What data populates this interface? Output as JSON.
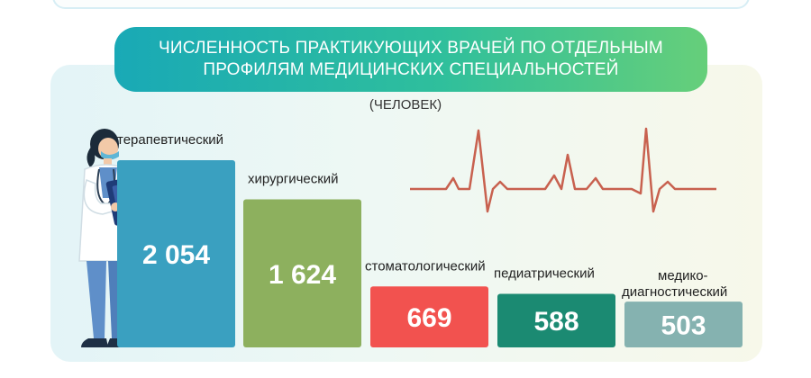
{
  "header": {
    "title": "ЧИСЛЕННОСТЬ ПРАКТИКУЮЩИХ ВРАЧЕЙ ПО ОТДЕЛЬНЫМ ПРОФИЛЯМ МЕДИЦИНСКИХ СПЕЦИАЛЬНОСТЕЙ",
    "unit": "(ЧЕЛОВЕК)"
  },
  "chart_data": {
    "type": "bar",
    "title": "ЧИСЛЕННОСТЬ ПРАКТИКУЮЩИХ ВРАЧЕЙ ПО ОТДЕЛЬНЫМ ПРОФИЛЯМ МЕДИЦИНСКИХ СПЕЦИАЛЬНОСТЕЙ",
    "subtitle": "(ЧЕЛОВЕК)",
    "categories": [
      "терапевтический",
      "хирургический",
      "стоматологический",
      "педиатрический",
      "медико-диагностический"
    ],
    "values": [
      2054,
      1624,
      669,
      588,
      503
    ],
    "value_labels": [
      "2 054",
      "1 624",
      "669",
      "588",
      "503"
    ],
    "colors": [
      "#3aa0c0",
      "#8db05e",
      "#f2524f",
      "#1b8a72",
      "#85b2b0"
    ],
    "xlabel": "",
    "ylabel": "",
    "ylim": [
      0,
      2054
    ],
    "grid": false,
    "legend": "none"
  }
}
